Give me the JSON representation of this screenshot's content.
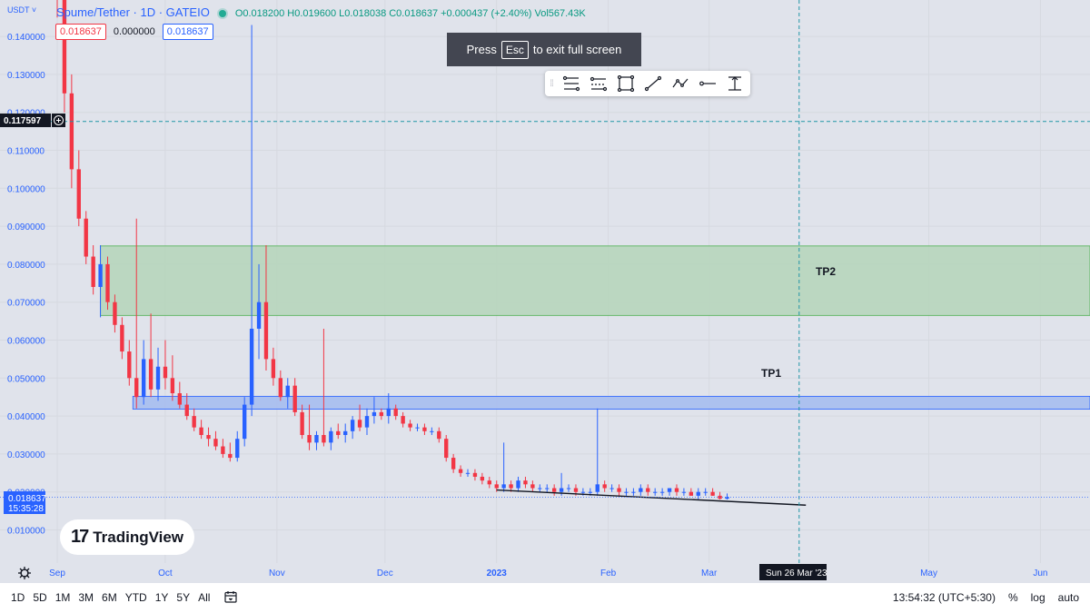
{
  "header": {
    "currency": "USDT ˅",
    "symbol": "Spume/Tether · 1D · GATEIO",
    "ohlc": "O0.018200 H0.019600 L0.018038 C0.018637 +0.000437 (+2.40%) Vol567.43K",
    "sell_price": "0.018637",
    "spread": "0.000000",
    "buy_price": "0.018637"
  },
  "esc_notice": {
    "prefix": "Press",
    "key": "Esc",
    "suffix": "to exit full screen"
  },
  "drawing_toolbar": {
    "tools": [
      "fib-retracement-icon",
      "parallel-channel-icon",
      "rectangle-icon",
      "trend-line-icon",
      "path-icon",
      "horizontal-ray-icon",
      "price-range-icon"
    ]
  },
  "price_axis": {
    "ticks": [
      "0.140000",
      "0.130000",
      "0.120000",
      "0.110000",
      "0.100000",
      "0.090000",
      "0.080000",
      "0.070000",
      "0.060000",
      "0.050000",
      "0.040000",
      "0.030000",
      "0.020000",
      "0.010000"
    ],
    "crosshair_label": "0.117597",
    "last_price_label": "0.018637",
    "countdown": "15:35:28"
  },
  "time_axis": {
    "labels": [
      "Sep",
      "Oct",
      "Nov",
      "Dec",
      "2023",
      "Feb",
      "Mar",
      "May",
      "Jun"
    ],
    "crosshair_label": "Sun 26 Mar '23"
  },
  "annotations": {
    "tp1": "TP1",
    "tp2": "TP2"
  },
  "logo": {
    "text": "TradingView"
  },
  "bottom_bar": {
    "periods": [
      "1D",
      "5D",
      "1M",
      "3M",
      "6M",
      "YTD",
      "1Y",
      "5Y",
      "All"
    ],
    "clock": "13:54:32 (UTC+5:30)",
    "percent": "%",
    "log": "log",
    "auto": "auto"
  },
  "colors": {
    "up": "#2962ff",
    "down": "#f23645",
    "tp2_zone": "#b7d5bd",
    "tp1_zone": "#a6bdf0",
    "background": "#e0e3eb"
  },
  "chart_data": {
    "type": "candlestick",
    "symbol": "Spume/Tether",
    "interval": "1D",
    "exchange": "GATEIO",
    "ylim": [
      0.0,
      0.145
    ],
    "zones": [
      {
        "label": "TP2",
        "from_price": 0.0665,
        "to_price": 0.0848
      },
      {
        "label": "TP1",
        "from_price": 0.0418,
        "to_price": 0.0452
      }
    ],
    "trendline": {
      "from": [
        "2023-01-01",
        0.0205
      ],
      "to": [
        "2023-03-14",
        0.017
      ]
    },
    "crosshair": {
      "price": 0.117597,
      "date": "2023-03-26"
    },
    "last_close": 0.018637,
    "candles": [
      [
        "2022-09-01",
        0.16,
        0.17,
        0.145,
        0.15
      ],
      [
        "2022-09-03",
        0.15,
        0.155,
        0.12,
        0.125
      ],
      [
        "2022-09-05",
        0.125,
        0.13,
        0.1,
        0.105
      ],
      [
        "2022-09-07",
        0.105,
        0.11,
        0.09,
        0.092
      ],
      [
        "2022-09-09",
        0.092,
        0.094,
        0.08,
        0.082
      ],
      [
        "2022-09-11",
        0.082,
        0.085,
        0.072,
        0.074
      ],
      [
        "2022-09-13",
        0.074,
        0.085,
        0.066,
        0.08
      ],
      [
        "2022-09-15",
        0.08,
        0.082,
        0.068,
        0.07
      ],
      [
        "2022-09-17",
        0.07,
        0.072,
        0.062,
        0.064
      ],
      [
        "2022-09-19",
        0.064,
        0.066,
        0.055,
        0.057
      ],
      [
        "2022-09-21",
        0.057,
        0.06,
        0.048,
        0.05
      ],
      [
        "2022-09-23",
        0.05,
        0.092,
        0.042,
        0.045
      ],
      [
        "2022-09-25",
        0.045,
        0.06,
        0.043,
        0.055
      ],
      [
        "2022-09-27",
        0.055,
        0.067,
        0.045,
        0.047
      ],
      [
        "2022-09-29",
        0.047,
        0.058,
        0.044,
        0.053
      ],
      [
        "2022-10-01",
        0.053,
        0.06,
        0.047,
        0.05
      ],
      [
        "2022-10-03",
        0.05,
        0.056,
        0.044,
        0.046
      ],
      [
        "2022-10-05",
        0.046,
        0.049,
        0.042,
        0.043
      ],
      [
        "2022-10-07",
        0.043,
        0.046,
        0.039,
        0.04
      ],
      [
        "2022-10-09",
        0.04,
        0.042,
        0.036,
        0.037
      ],
      [
        "2022-10-11",
        0.037,
        0.039,
        0.034,
        0.035
      ],
      [
        "2022-10-13",
        0.035,
        0.037,
        0.032,
        0.034
      ],
      [
        "2022-10-15",
        0.034,
        0.036,
        0.031,
        0.032
      ],
      [
        "2022-10-17",
        0.032,
        0.034,
        0.029,
        0.03
      ],
      [
        "2022-10-19",
        0.03,
        0.033,
        0.028,
        0.029
      ],
      [
        "2022-10-21",
        0.029,
        0.036,
        0.028,
        0.034
      ],
      [
        "2022-10-23",
        0.034,
        0.045,
        0.032,
        0.043
      ],
      [
        "2022-10-25",
        0.043,
        0.143,
        0.04,
        0.063
      ],
      [
        "2022-10-27",
        0.063,
        0.08,
        0.055,
        0.07
      ],
      [
        "2022-10-29",
        0.07,
        0.085,
        0.052,
        0.055
      ],
      [
        "2022-10-31",
        0.055,
        0.058,
        0.048,
        0.05
      ],
      [
        "2022-11-02",
        0.05,
        0.052,
        0.044,
        0.045
      ],
      [
        "2022-11-04",
        0.045,
        0.05,
        0.042,
        0.048
      ],
      [
        "2022-11-06",
        0.048,
        0.05,
        0.04,
        0.041
      ],
      [
        "2022-11-08",
        0.041,
        0.043,
        0.034,
        0.035
      ],
      [
        "2022-11-10",
        0.035,
        0.043,
        0.031,
        0.033
      ],
      [
        "2022-11-12",
        0.033,
        0.036,
        0.031,
        0.035
      ],
      [
        "2022-11-14",
        0.035,
        0.063,
        0.032,
        0.033
      ],
      [
        "2022-11-16",
        0.033,
        0.037,
        0.031,
        0.036
      ],
      [
        "2022-11-18",
        0.036,
        0.038,
        0.034,
        0.035
      ],
      [
        "2022-11-20",
        0.035,
        0.038,
        0.033,
        0.036
      ],
      [
        "2022-11-22",
        0.036,
        0.04,
        0.034,
        0.039
      ],
      [
        "2022-11-24",
        0.039,
        0.043,
        0.036,
        0.037
      ],
      [
        "2022-11-26",
        0.037,
        0.042,
        0.035,
        0.04
      ],
      [
        "2022-11-28",
        0.04,
        0.045,
        0.038,
        0.041
      ],
      [
        "2022-11-30",
        0.041,
        0.042,
        0.039,
        0.04
      ],
      [
        "2022-12-02",
        0.04,
        0.046,
        0.038,
        0.042
      ],
      [
        "2022-12-04",
        0.042,
        0.043,
        0.039,
        0.04
      ],
      [
        "2022-12-06",
        0.04,
        0.041,
        0.037,
        0.038
      ],
      [
        "2022-12-08",
        0.038,
        0.039,
        0.036,
        0.037
      ],
      [
        "2022-12-10",
        0.037,
        0.038,
        0.036,
        0.037
      ],
      [
        "2022-12-12",
        0.037,
        0.038,
        0.035,
        0.036
      ],
      [
        "2022-12-14",
        0.036,
        0.037,
        0.035,
        0.036
      ],
      [
        "2022-12-16",
        0.036,
        0.037,
        0.033,
        0.034
      ],
      [
        "2022-12-18",
        0.034,
        0.035,
        0.028,
        0.029
      ],
      [
        "2022-12-20",
        0.029,
        0.03,
        0.025,
        0.026
      ],
      [
        "2022-12-22",
        0.026,
        0.027,
        0.024,
        0.025
      ],
      [
        "2022-12-24",
        0.025,
        0.026,
        0.024,
        0.025
      ],
      [
        "2022-12-26",
        0.025,
        0.026,
        0.023,
        0.024
      ],
      [
        "2022-12-28",
        0.024,
        0.025,
        0.022,
        0.023
      ],
      [
        "2022-12-30",
        0.023,
        0.024,
        0.021,
        0.022
      ],
      [
        "2023-01-01",
        0.022,
        0.023,
        0.02,
        0.021
      ],
      [
        "2023-01-03",
        0.021,
        0.033,
        0.02,
        0.022
      ],
      [
        "2023-01-05",
        0.022,
        0.023,
        0.02,
        0.021
      ],
      [
        "2023-01-07",
        0.021,
        0.024,
        0.02,
        0.023
      ],
      [
        "2023-01-09",
        0.023,
        0.024,
        0.021,
        0.022
      ],
      [
        "2023-01-11",
        0.022,
        0.023,
        0.02,
        0.021
      ],
      [
        "2023-01-13",
        0.021,
        0.022,
        0.02,
        0.021
      ],
      [
        "2023-01-15",
        0.021,
        0.022,
        0.02,
        0.021
      ],
      [
        "2023-01-17",
        0.021,
        0.022,
        0.019,
        0.02
      ],
      [
        "2023-01-19",
        0.02,
        0.025,
        0.019,
        0.021
      ],
      [
        "2023-01-21",
        0.021,
        0.022,
        0.02,
        0.021
      ],
      [
        "2023-01-23",
        0.021,
        0.022,
        0.019,
        0.02
      ],
      [
        "2023-01-25",
        0.02,
        0.021,
        0.019,
        0.02
      ],
      [
        "2023-01-27",
        0.02,
        0.021,
        0.019,
        0.02
      ],
      [
        "2023-01-29",
        0.02,
        0.042,
        0.019,
        0.022
      ],
      [
        "2023-01-31",
        0.022,
        0.023,
        0.02,
        0.021
      ],
      [
        "2023-02-02",
        0.021,
        0.022,
        0.02,
        0.021
      ],
      [
        "2023-02-04",
        0.021,
        0.022,
        0.019,
        0.02
      ],
      [
        "2023-02-06",
        0.02,
        0.021,
        0.019,
        0.02
      ],
      [
        "2023-02-08",
        0.02,
        0.021,
        0.019,
        0.02
      ],
      [
        "2023-02-10",
        0.02,
        0.022,
        0.019,
        0.021
      ],
      [
        "2023-02-12",
        0.021,
        0.022,
        0.019,
        0.02
      ],
      [
        "2023-02-14",
        0.02,
        0.021,
        0.019,
        0.02
      ],
      [
        "2023-02-16",
        0.02,
        0.021,
        0.019,
        0.02
      ],
      [
        "2023-02-18",
        0.02,
        0.021,
        0.019,
        0.021
      ],
      [
        "2023-02-20",
        0.021,
        0.022,
        0.019,
        0.02
      ],
      [
        "2023-02-22",
        0.02,
        0.021,
        0.019,
        0.02
      ],
      [
        "2023-02-24",
        0.02,
        0.021,
        0.019,
        0.019
      ],
      [
        "2023-02-26",
        0.019,
        0.021,
        0.018,
        0.02
      ],
      [
        "2023-02-28",
        0.02,
        0.021,
        0.019,
        0.02
      ],
      [
        "2023-03-02",
        0.02,
        0.021,
        0.019,
        0.019
      ],
      [
        "2023-03-04",
        0.019,
        0.02,
        0.018,
        0.0182
      ],
      [
        "2023-03-06",
        0.0182,
        0.0196,
        0.018,
        0.018637
      ]
    ]
  }
}
